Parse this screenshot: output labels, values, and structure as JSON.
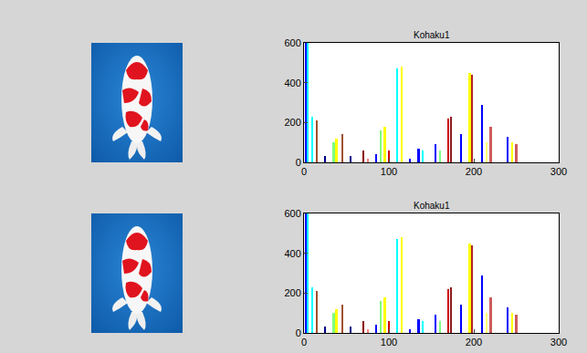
{
  "chart_data": [
    {
      "type": "bar",
      "title": "Kohaku1",
      "x": [
        2,
        4,
        10,
        15,
        25,
        35,
        38,
        45,
        55,
        70,
        75,
        85,
        90,
        95,
        100,
        110,
        115,
        125,
        135,
        140,
        155,
        160,
        170,
        173,
        185,
        195,
        198,
        210,
        215,
        220,
        240,
        245,
        250
      ],
      "values": [
        600,
        600,
        230,
        210,
        30,
        100,
        120,
        140,
        30,
        60,
        20,
        40,
        160,
        180,
        60,
        470,
        480,
        20,
        70,
        60,
        90,
        60,
        220,
        230,
        140,
        450,
        440,
        290,
        100,
        180,
        130,
        100,
        90
      ],
      "colors": [
        "#0000ff",
        "#00ffff",
        "#00ffff",
        "#a0522d",
        "#00008b",
        "#7fff7f",
        "#ffff00",
        "#a0522d",
        "#00008b",
        "#8b0000",
        "#ff7f7f",
        "#0000ff",
        "#7fff7f",
        "#ffff00",
        "#cc0000",
        "#00ffff",
        "#ffff00",
        "#0000ff",
        "#0000ff",
        "#00ffff",
        "#0000ff",
        "#7fff7f",
        "#cc0000",
        "#8b1a1a",
        "#0000ff",
        "#ffff00",
        "#b22222",
        "#0000ff",
        "#ffff7f",
        "#cd5c5c",
        "#0000ff",
        "#ffff00",
        "#cd5c5c"
      ],
      "xlim": [
        0,
        300
      ],
      "xticks": [
        0,
        100,
        200,
        300
      ],
      "ylim": [
        0,
        600
      ],
      "yticks": [
        0,
        200,
        400,
        600
      ],
      "grid": false
    },
    {
      "type": "bar",
      "title": "Kohaku1",
      "x": [
        2,
        4,
        10,
        15,
        25,
        35,
        38,
        45,
        55,
        70,
        75,
        85,
        90,
        95,
        100,
        110,
        115,
        125,
        135,
        140,
        155,
        160,
        170,
        173,
        185,
        195,
        198,
        210,
        215,
        220,
        240,
        245,
        250
      ],
      "values": [
        600,
        600,
        230,
        210,
        30,
        100,
        120,
        140,
        30,
        60,
        20,
        40,
        160,
        180,
        60,
        470,
        480,
        20,
        70,
        60,
        90,
        60,
        220,
        230,
        140,
        450,
        440,
        290,
        100,
        180,
        130,
        100,
        90
      ],
      "colors": [
        "#0000ff",
        "#00ffff",
        "#00ffff",
        "#a0522d",
        "#00008b",
        "#7fff7f",
        "#ffff00",
        "#a0522d",
        "#00008b",
        "#8b0000",
        "#ff7f7f",
        "#0000ff",
        "#7fff7f",
        "#ffff00",
        "#cc0000",
        "#00ffff",
        "#ffff00",
        "#0000ff",
        "#0000ff",
        "#00ffff",
        "#0000ff",
        "#7fff7f",
        "#cc0000",
        "#8b1a1a",
        "#0000ff",
        "#ffff00",
        "#b22222",
        "#0000ff",
        "#ffff7f",
        "#cd5c5c",
        "#0000ff",
        "#ffff00",
        "#cd5c5c"
      ],
      "xlim": [
        0,
        300
      ],
      "xticks": [
        0,
        100,
        200,
        300
      ],
      "ylim": [
        0,
        600
      ],
      "yticks": [
        0,
        200,
        400,
        600
      ],
      "grid": false
    }
  ]
}
